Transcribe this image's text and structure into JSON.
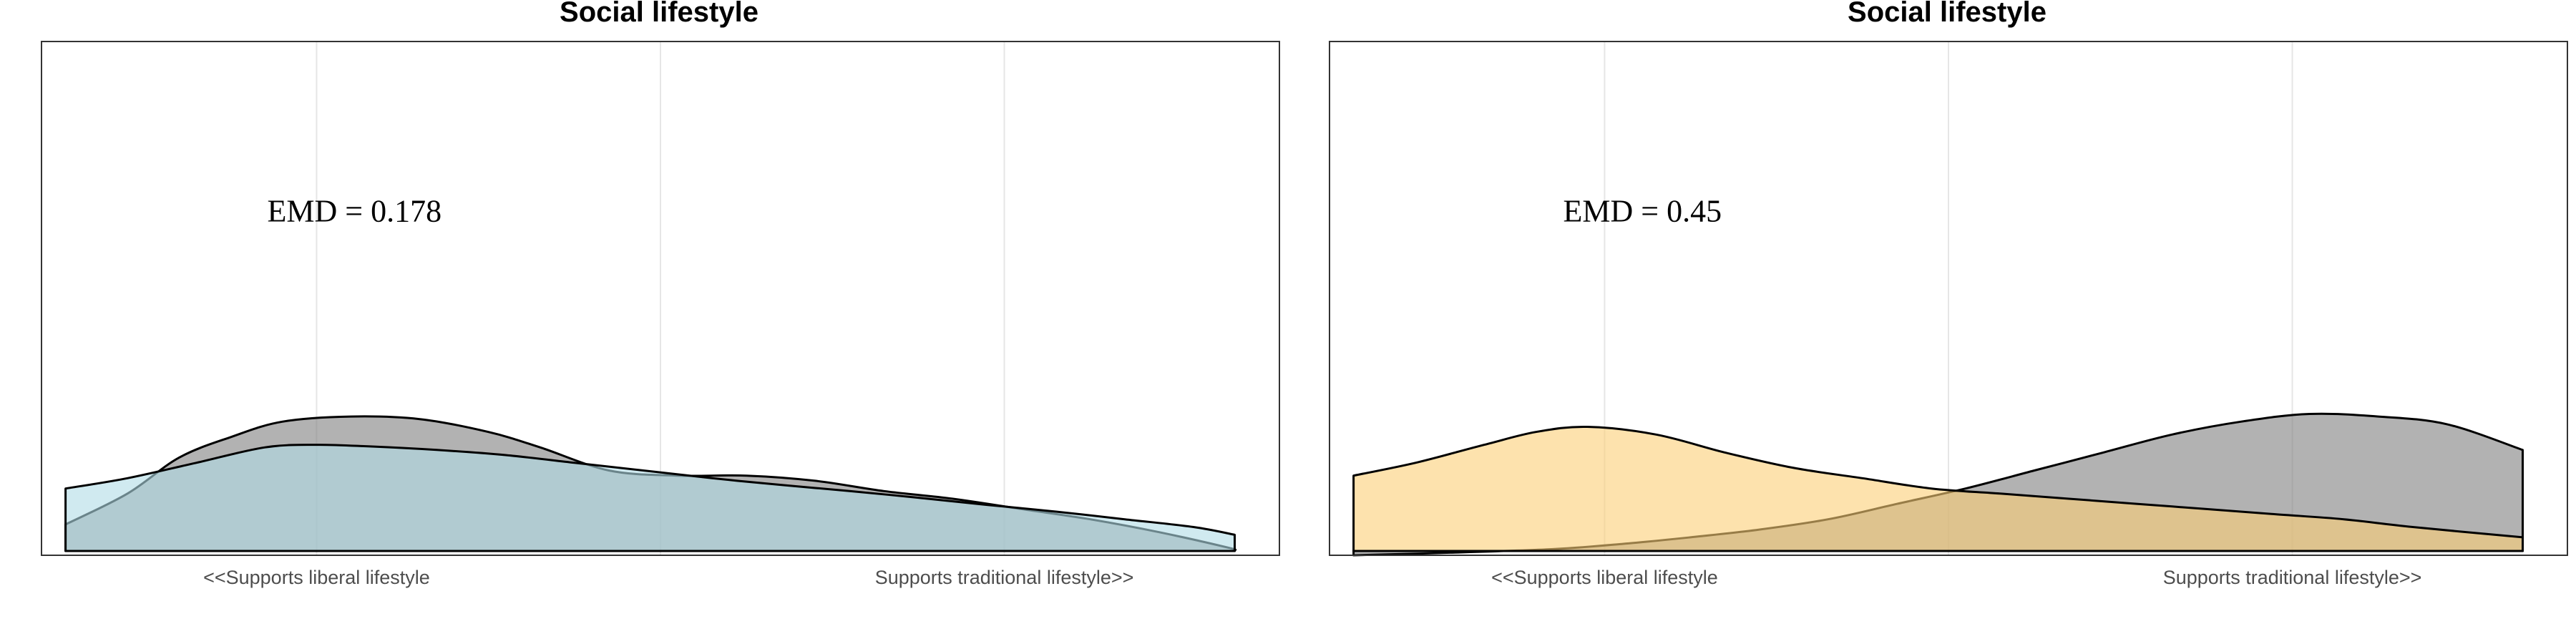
{
  "chart_data": [
    {
      "type": "area",
      "title": "Social lifestyle",
      "xlabel": "",
      "ylabel": "",
      "xlim": [
        -0.45,
        3.15
      ],
      "ylim": [
        0,
        1
      ],
      "x_ticks": [
        0.35,
        2.35
      ],
      "x_tick_labels": [
        "<<Supports liberal lifestyle",
        "Supports traditional lifestyle>>"
      ],
      "grid": true,
      "annotation": {
        "text": "EMD = 0.178",
        "x": 0.46,
        "y": 0.65
      },
      "colors": {
        "dist_a": "#7f7f7f",
        "dist_b": "#b0dce6"
      },
      "series": [
        {
          "x": [
            -0.38,
            -0.2,
            -0.05,
            0.1,
            0.25,
            0.45,
            0.65,
            0.85,
            1.0,
            1.2,
            1.4,
            1.6,
            1.8,
            2.0,
            2.2,
            2.4,
            2.6,
            2.8,
            3.0,
            3.02
          ],
          "y": [
            0.06,
            0.12,
            0.19,
            0.23,
            0.26,
            0.27,
            0.265,
            0.24,
            0.21,
            0.165,
            0.155,
            0.155,
            0.145,
            0.125,
            0.11,
            0.09,
            0.07,
            0.045,
            0.015,
            0.01
          ],
          "colorKey": "dist_a"
        },
        {
          "x": [
            -0.38,
            -0.2,
            0.0,
            0.2,
            0.35,
            0.5,
            0.7,
            0.9,
            1.1,
            1.3,
            1.5,
            1.7,
            1.9,
            2.1,
            2.3,
            2.5,
            2.7,
            2.9,
            3.02
          ],
          "y": [
            0.13,
            0.15,
            0.18,
            0.21,
            0.215,
            0.212,
            0.205,
            0.195,
            0.18,
            0.165,
            0.15,
            0.137,
            0.125,
            0.112,
            0.098,
            0.085,
            0.07,
            0.055,
            0.04
          ],
          "colorKey": "dist_b"
        }
      ]
    },
    {
      "type": "area",
      "title": "Social lifestyle",
      "xlabel": "",
      "ylabel": "",
      "xlim": [
        -0.45,
        3.15
      ],
      "ylim": [
        0,
        1
      ],
      "x_ticks": [
        0.35,
        2.35
      ],
      "x_tick_labels": [
        "<<Supports liberal lifestyle",
        "Supports traditional lifestyle>>"
      ],
      "grid": true,
      "annotation": {
        "text": "EMD = 0.45",
        "x": 0.46,
        "y": 0.65
      },
      "colors": {
        "dist_a": "#7f7f7f",
        "dist_b": "#fccf76"
      },
      "series": [
        {
          "x": [
            -0.38,
            -0.1,
            0.2,
            0.4,
            0.6,
            0.8,
            1.0,
            1.2,
            1.4,
            1.6,
            1.8,
            2.0,
            2.2,
            2.4,
            2.6,
            2.8,
            3.02
          ],
          "y": [
            0.0,
            0.005,
            0.012,
            0.022,
            0.035,
            0.05,
            0.07,
            0.1,
            0.13,
            0.165,
            0.2,
            0.235,
            0.26,
            0.275,
            0.27,
            0.255,
            0.205
          ],
          "colorKey": "dist_a"
        },
        {
          "x": [
            -0.38,
            -0.2,
            0.0,
            0.15,
            0.3,
            0.5,
            0.7,
            0.9,
            1.1,
            1.3,
            1.5,
            1.7,
            1.9,
            2.1,
            2.3,
            2.5,
            2.7,
            3.02
          ],
          "y": [
            0.155,
            0.18,
            0.215,
            0.24,
            0.25,
            0.235,
            0.2,
            0.17,
            0.15,
            0.13,
            0.12,
            0.11,
            0.1,
            0.09,
            0.08,
            0.07,
            0.055,
            0.035
          ],
          "colorKey": "dist_b"
        }
      ]
    }
  ]
}
